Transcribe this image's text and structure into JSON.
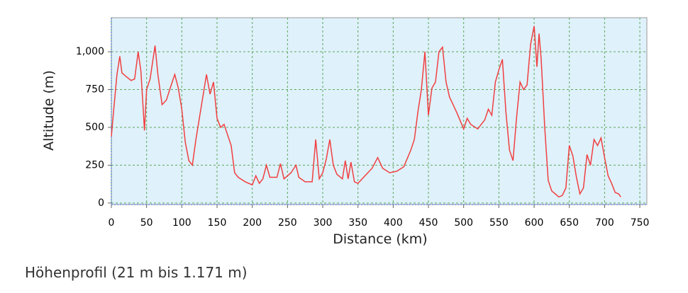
{
  "chart_data": {
    "type": "line",
    "caption": "Höhenprofil (21 m bis 1.171 m)",
    "x_label": "Distance (km)",
    "y_label": "Altitude (m)",
    "color": "#f04040",
    "grid": true,
    "xlim": [
      0,
      760
    ],
    "ylim": [
      -10,
      1225
    ],
    "xticks": [
      0,
      50,
      100,
      150,
      200,
      250,
      300,
      350,
      400,
      450,
      500,
      550,
      600,
      650,
      700,
      750
    ],
    "yticks": [
      0,
      250,
      500,
      750,
      {
        "value": 1000,
        "label": "1,000"
      }
    ],
    "x": [
      0,
      3,
      8,
      12,
      15,
      20,
      28,
      33,
      38,
      42,
      47,
      50,
      55,
      62,
      66,
      72,
      78,
      85,
      90,
      95,
      100,
      105,
      110,
      115,
      120,
      128,
      135,
      140,
      145,
      150,
      155,
      160,
      165,
      170,
      175,
      180,
      190,
      200,
      205,
      210,
      215,
      220,
      225,
      235,
      240,
      245,
      255,
      262,
      266,
      275,
      285,
      290,
      295,
      300,
      305,
      310,
      315,
      320,
      328,
      332,
      336,
      340,
      345,
      350,
      360,
      370,
      378,
      385,
      395,
      405,
      415,
      425,
      430,
      435,
      440,
      445,
      450,
      455,
      460,
      465,
      470,
      475,
      480,
      490,
      500,
      505,
      510,
      520,
      530,
      535,
      540,
      545,
      550,
      555,
      560,
      565,
      570,
      575,
      580,
      585,
      590,
      595,
      600,
      604,
      607,
      610,
      615,
      620,
      625,
      630,
      635,
      640,
      645,
      650,
      655,
      660,
      665,
      670,
      675,
      680,
      685,
      690,
      695,
      700,
      705,
      710,
      715,
      720,
      723
    ],
    "values": [
      440,
      600,
      850,
      970,
      860,
      840,
      810,
      820,
      1000,
      870,
      480,
      750,
      820,
      1040,
      850,
      650,
      680,
      780,
      850,
      760,
      620,
      400,
      280,
      250,
      420,
      650,
      850,
      720,
      800,
      560,
      500,
      520,
      450,
      380,
      200,
      170,
      140,
      120,
      180,
      130,
      160,
      250,
      170,
      170,
      260,
      160,
      200,
      250,
      170,
      140,
      140,
      420,
      160,
      200,
      290,
      420,
      250,
      190,
      160,
      280,
      160,
      270,
      140,
      130,
      180,
      230,
      300,
      230,
      200,
      210,
      240,
      350,
      420,
      600,
      750,
      1000,
      580,
      760,
      800,
      1000,
      1030,
      800,
      700,
      600,
      490,
      560,
      520,
      490,
      550,
      620,
      580,
      800,
      880,
      950,
      600,
      350,
      280,
      560,
      800,
      750,
      780,
      1050,
      1170,
      900,
      1120,
      950,
      500,
      150,
      80,
      60,
      40,
      50,
      100,
      380,
      310,
      170,
      60,
      100,
      320,
      250,
      420,
      380,
      430,
      300,
      180,
      130,
      70,
      60,
      40
    ]
  }
}
